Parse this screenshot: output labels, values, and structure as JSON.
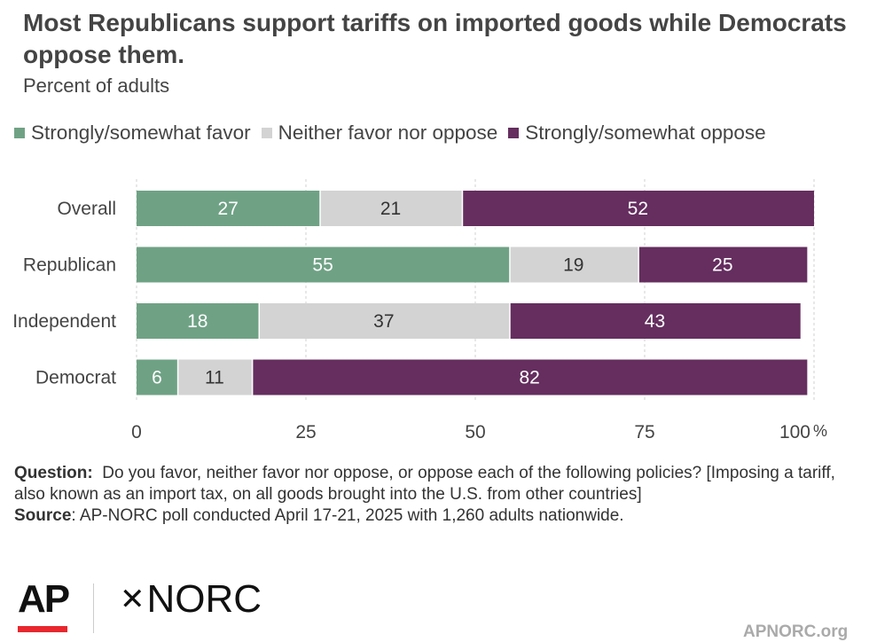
{
  "header": {
    "title": "Most Republicans support tariffs on imported goods while Democrats oppose them.",
    "subtitle": "Percent of adults"
  },
  "legend": [
    {
      "label": "Strongly/somewhat favor",
      "color": "#6fa285"
    },
    {
      "label": "Neither favor nor oppose",
      "color": "#d3d3d3"
    },
    {
      "label": "Strongly/somewhat oppose",
      "color": "#652e5f"
    }
  ],
  "chart_data": {
    "type": "bar",
    "orientation": "horizontal",
    "stacked": true,
    "categories": [
      "Overall",
      "Republican",
      "Independent",
      "Democrat"
    ],
    "series": [
      {
        "name": "Strongly/somewhat favor",
        "color": "#6fa285",
        "values": [
          27,
          55,
          18,
          6
        ]
      },
      {
        "name": "Neither favor nor oppose",
        "color": "#d3d3d3",
        "values": [
          21,
          19,
          37,
          11
        ]
      },
      {
        "name": "Strongly/somewhat oppose",
        "color": "#652e5f",
        "values": [
          52,
          25,
          43,
          82
        ]
      }
    ],
    "xlim": [
      0,
      100
    ],
    "xticks": [
      "0",
      "25",
      "50",
      "75",
      "100"
    ],
    "x_unit": "%",
    "grid": true,
    "legend_position": "top"
  },
  "notes": {
    "question_label": "Question:",
    "question_text": "Do you favor, neither favor nor oppose, or oppose each of the following policies? [Imposing a tariff, also known as an import tax, on all goods brought into the U.S. from other countries]",
    "source_label": "Source",
    "source_text": ": AP-NORC poll conducted April 17-21, 2025 with 1,260 adults nationwide."
  },
  "branding": {
    "ap_logo": "AP",
    "norc_logo": "NORC",
    "norc_mark": "✕",
    "site": "APNORC.org"
  }
}
